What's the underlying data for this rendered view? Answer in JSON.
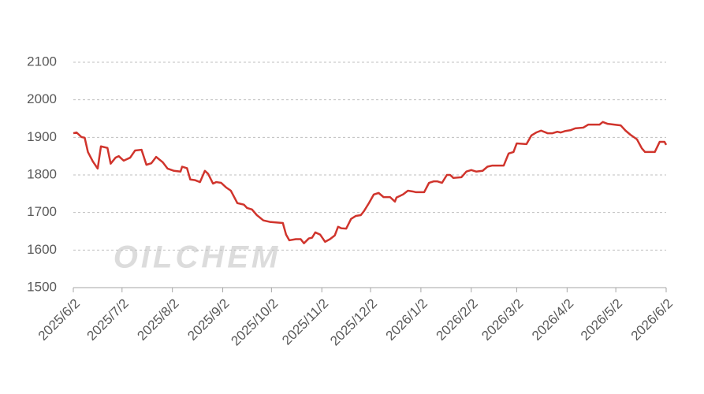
{
  "chart_data": {
    "type": "line",
    "watermark": "OILCHEM",
    "x": [
      "2025/6/2",
      "2025/6/4",
      "2025/6/7",
      "2025/6/9",
      "2025/6/11",
      "2025/6/14",
      "2025/6/17",
      "2025/6/19",
      "2025/6/23",
      "2025/6/25",
      "2025/6/28",
      "2025/6/30",
      "2025/7/3",
      "2025/7/7",
      "2025/7/10",
      "2025/7/14",
      "2025/7/17",
      "2025/7/20",
      "2025/7/23",
      "2025/7/27",
      "2025/7/30",
      "2025/8/3",
      "2025/8/7",
      "2025/8/8",
      "2025/8/11",
      "2025/8/13",
      "2025/8/16",
      "2025/8/19",
      "2025/8/22",
      "2025/8/24",
      "2025/8/27",
      "2025/8/29",
      "2025/9/1",
      "2025/9/4",
      "2025/9/7",
      "2025/9/11",
      "2025/9/15",
      "2025/9/17",
      "2025/9/20",
      "2025/9/23",
      "2025/9/27",
      "2025/10/1",
      "2025/10/9",
      "2025/10/11",
      "2025/10/13",
      "2025/10/17",
      "2025/10/20",
      "2025/10/22",
      "2025/10/25",
      "2025/10/27",
      "2025/10/29",
      "2025/11/1",
      "2025/11/4",
      "2025/11/7",
      "2025/11/10",
      "2025/11/12",
      "2025/11/14",
      "2025/11/17",
      "2025/11/20",
      "2025/11/23",
      "2025/11/26",
      "2025/11/28",
      "2025/12/1",
      "2025/12/4",
      "2025/12/7",
      "2025/12/10",
      "2025/12/14",
      "2025/12/17",
      "2025/12/18",
      "2025/12/22",
      "2025/12/25",
      "2025/12/28",
      "2025/12/30",
      "2026/1/4",
      "2026/1/7",
      "2026/1/10",
      "2026/1/12",
      "2026/1/15",
      "2026/1/18",
      "2026/1/20",
      "2026/1/22",
      "2026/1/27",
      "2026/1/30",
      "2026/2/2",
      "2026/2/5",
      "2026/2/9",
      "2026/2/12",
      "2026/2/15",
      "2026/2/22",
      "2026/2/25",
      "2026/2/28",
      "2026/3/2",
      "2026/3/8",
      "2026/3/11",
      "2026/3/14",
      "2026/3/17",
      "2026/3/21",
      "2026/3/24",
      "2026/3/27",
      "2026/3/29",
      "2026/4/1",
      "2026/4/4",
      "2026/4/7",
      "2026/4/12",
      "2026/4/15",
      "2026/4/22",
      "2026/4/24",
      "2026/4/27",
      "2026/5/5",
      "2026/5/8",
      "2026/5/11",
      "2026/5/15",
      "2026/5/18",
      "2026/5/20",
      "2026/5/26",
      "2026/5/29",
      "2026/6/1",
      "2026/6/2"
    ],
    "values": [
      1911,
      1913,
      1901,
      1899,
      1861,
      1836,
      1817,
      1876,
      1872,
      1830,
      1846,
      1850,
      1838,
      1846,
      1865,
      1867,
      1827,
      1831,
      1848,
      1834,
      1817,
      1811,
      1809,
      1822,
      1818,
      1788,
      1786,
      1781,
      1811,
      1803,
      1777,
      1781,
      1779,
      1767,
      1758,
      1725,
      1721,
      1712,
      1708,
      1693,
      1679,
      1675,
      1672,
      1641,
      1626,
      1629,
      1629,
      1618,
      1631,
      1633,
      1647,
      1641,
      1622,
      1629,
      1639,
      1662,
      1658,
      1657,
      1683,
      1691,
      1693,
      1704,
      1725,
      1748,
      1752,
      1741,
      1741,
      1729,
      1740,
      1748,
      1758,
      1756,
      1754,
      1754,
      1779,
      1783,
      1783,
      1779,
      1800,
      1800,
      1792,
      1794,
      1809,
      1813,
      1809,
      1811,
      1822,
      1825,
      1825,
      1857,
      1861,
      1884,
      1882,
      1905,
      1913,
      1918,
      1911,
      1911,
      1915,
      1913,
      1917,
      1919,
      1924,
      1926,
      1934,
      1934,
      1941,
      1936,
      1932,
      1918,
      1907,
      1895,
      1871,
      1861,
      1861,
      1888,
      1888,
      1880
    ],
    "color": "#d0342c",
    "xlim": [
      "2025/6/2",
      "2026/6/2"
    ],
    "xticks": [
      "2025/6/2",
      "2025/7/2",
      "2025/8/2",
      "2025/9/2",
      "2025/10/2",
      "2025/11/2",
      "2025/12/2",
      "2026/1/2",
      "2026/2/2",
      "2026/3/2",
      "2026/4/2",
      "2026/5/2",
      "2026/6/2"
    ],
    "ylim": [
      1500,
      2100
    ],
    "yticks": [
      1500,
      1600,
      1700,
      1800,
      1900,
      2000,
      2100
    ],
    "grid": true
  }
}
